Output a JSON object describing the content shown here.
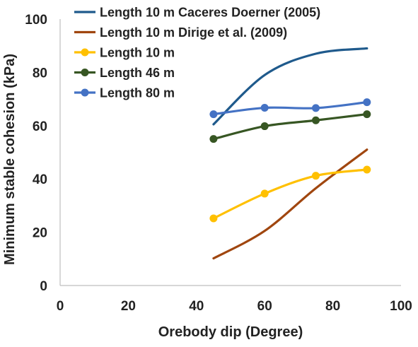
{
  "chart_data": {
    "type": "line",
    "title": "",
    "xlabel": "Orebody dip (Degree)",
    "ylabel": "Minimum stable cohesion (kPa)",
    "xlim": [
      0,
      100
    ],
    "ylim": [
      0,
      100
    ],
    "xticks": [
      0,
      20,
      40,
      60,
      80,
      100
    ],
    "yticks": [
      0,
      20,
      40,
      60,
      80,
      100
    ],
    "grid": false,
    "legend_position": "top-left inside",
    "series": [
      {
        "name": "Length 10 m Caceres Doerner (2005)",
        "color": "#1f5a8c",
        "markers": false,
        "smooth": true,
        "x": [
          45,
          60,
          75,
          90
        ],
        "y": [
          60.5,
          79,
          87,
          89
        ]
      },
      {
        "name": "Length 10 m Dirige et al. (2009)",
        "color": "#a0460f",
        "markers": false,
        "smooth": true,
        "x": [
          45,
          60,
          75,
          90
        ],
        "y": [
          10.2,
          20.5,
          36.5,
          51
        ]
      },
      {
        "name": "Length 10 m",
        "color": "#ffc000",
        "markers": true,
        "smooth": true,
        "x": [
          45,
          60,
          75,
          90
        ],
        "y": [
          25.2,
          34.5,
          41.2,
          43.5
        ]
      },
      {
        "name": "Length 46 m",
        "color": "#375623",
        "markers": true,
        "smooth": true,
        "x": [
          45,
          60,
          75,
          90
        ],
        "y": [
          55,
          59.8,
          62,
          64.3
        ]
      },
      {
        "name": "Length 80 m",
        "color": "#4472c4",
        "markers": true,
        "smooth": true,
        "x": [
          45,
          60,
          75,
          90
        ],
        "y": [
          64.3,
          66.7,
          66.6,
          68.8
        ]
      }
    ]
  }
}
